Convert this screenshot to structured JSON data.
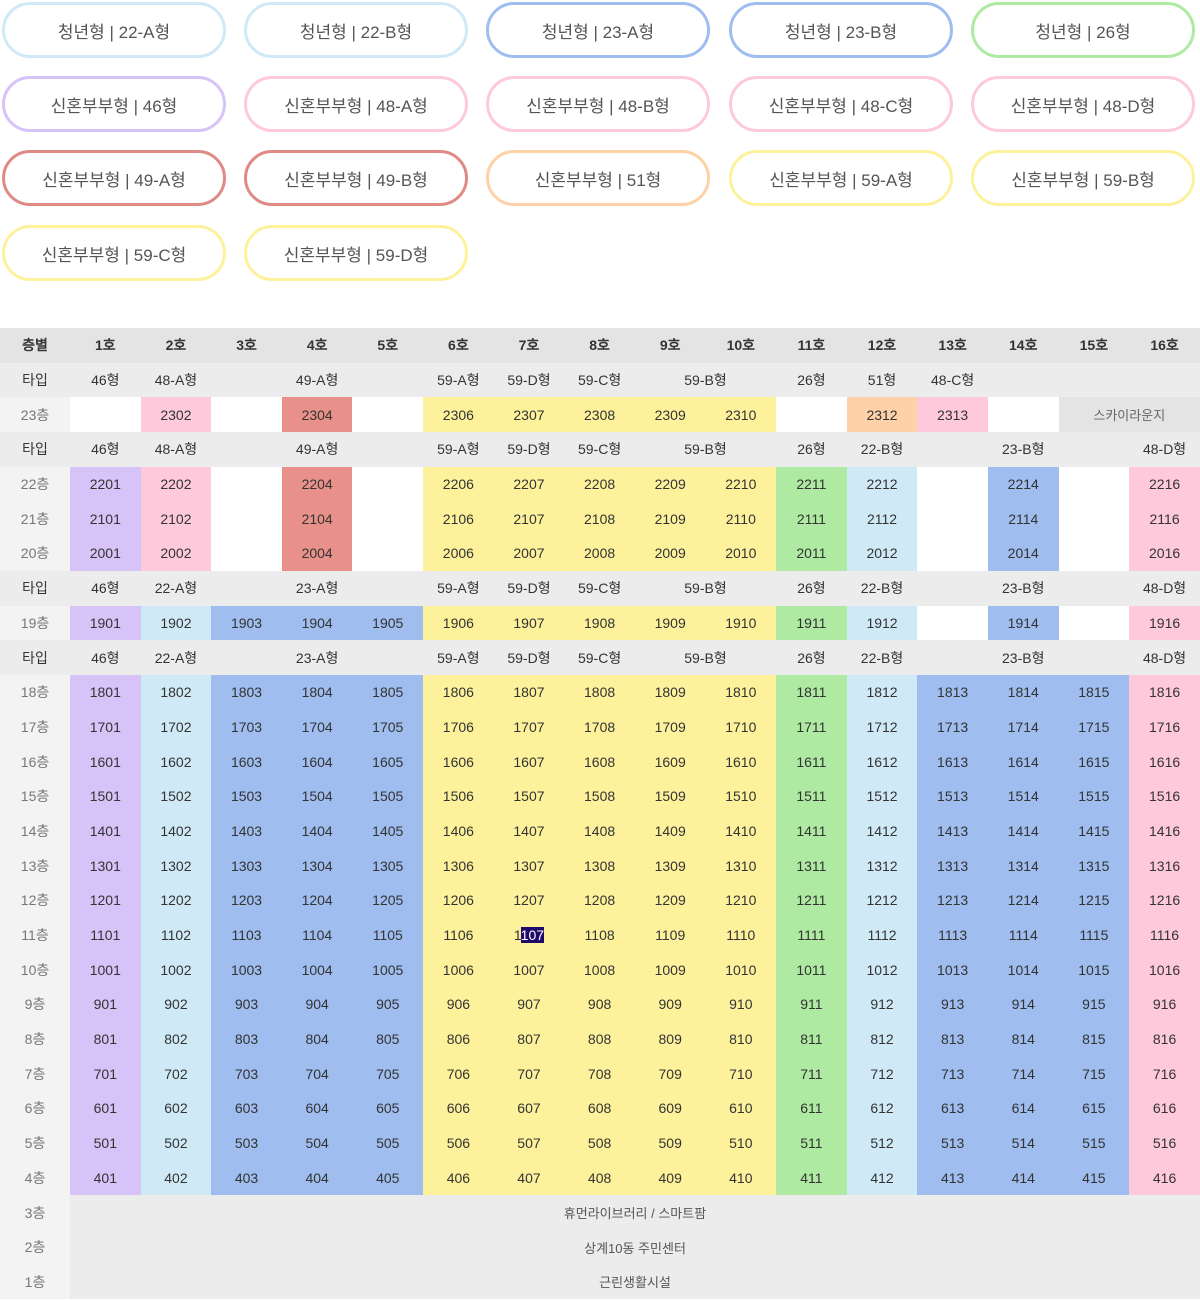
{
  "colors": {
    "c46": "#d7c3f7",
    "c48a": "#fecadb",
    "c49a": "#e8918a",
    "c59": "#fdf29b",
    "c26": "#aeeaa2",
    "c51": "#fed1a8",
    "c48c": "#fecadb",
    "c22": "#cfeaf6",
    "c23": "#9fbdef",
    "c48d": "#fecadb",
    "pill_22a": "#cfeaf6",
    "pill_22b": "#cfeaf6",
    "pill_23a": "#9fbdef",
    "pill_23b": "#9fbdef",
    "pill_26": "#aeeaa2",
    "pill_46": "#d7c3f7",
    "pill_48": "#fecadb",
    "pill_49a": "#e08a85",
    "pill_49b": "#e08a85",
    "pill_51": "#fed1a8",
    "pill_59": "#fdf29b"
  },
  "pills": [
    {
      "label": "청년형 | 22-A형",
      "color": "pill_22a"
    },
    {
      "label": "청년형 | 22-B형",
      "color": "pill_22b"
    },
    {
      "label": "청년형 | 23-A형",
      "color": "pill_23a"
    },
    {
      "label": "청년형 | 23-B형",
      "color": "pill_23b"
    },
    {
      "label": "청년형 | 26형",
      "color": "pill_26"
    },
    {
      "label": "신혼부부형 | 46형",
      "color": "pill_46"
    },
    {
      "label": "신혼부부형 | 48-A형",
      "color": "pill_48"
    },
    {
      "label": "신혼부부형 | 48-B형",
      "color": "pill_48"
    },
    {
      "label": "신혼부부형 | 48-C형",
      "color": "pill_48"
    },
    {
      "label": "신혼부부형 | 48-D형",
      "color": "pill_48"
    },
    {
      "label": "신혼부부형 | 49-A형",
      "color": "pill_49a"
    },
    {
      "label": "신혼부부형 | 49-B형",
      "color": "pill_49b"
    },
    {
      "label": "신혼부부형 | 51형",
      "color": "pill_51"
    },
    {
      "label": "신혼부부형 | 59-A형",
      "color": "pill_59"
    },
    {
      "label": "신혼부부형 | 59-B형",
      "color": "pill_59"
    },
    {
      "label": "신혼부부형 | 59-C형",
      "color": "pill_59"
    },
    {
      "label": "신혼부부형 | 59-D형",
      "color": "pill_59"
    }
  ],
  "table": {
    "rows": [
      {
        "kind": "hdr",
        "cells": [
          {
            "t": "층별"
          },
          {
            "t": "1호"
          },
          {
            "t": "2호"
          },
          {
            "t": "3호"
          },
          {
            "t": "4호"
          },
          {
            "t": "5호"
          },
          {
            "t": "6호"
          },
          {
            "t": "7호"
          },
          {
            "t": "8호"
          },
          {
            "t": "9호"
          },
          {
            "t": "10호"
          },
          {
            "t": "11호"
          },
          {
            "t": "12호"
          },
          {
            "t": "13호"
          },
          {
            "t": "14호"
          },
          {
            "t": "15호"
          },
          {
            "t": "16호"
          }
        ]
      },
      {
        "kind": "type",
        "cells": [
          {
            "t": "타입"
          },
          {
            "t": "46형"
          },
          {
            "t": "48-A형"
          },
          {
            "t": "49-A형",
            "span": 3
          },
          {
            "t": "59-A형"
          },
          {
            "t": "59-D형"
          },
          {
            "t": "59-C형"
          },
          {
            "t": "59-B형",
            "span": 2
          },
          {
            "t": "26형"
          },
          {
            "t": "51형"
          },
          {
            "t": "48-C형"
          },
          {
            "t": "",
            "span": 3
          }
        ]
      },
      {
        "kind": "floor",
        "cells": [
          {
            "t": "23층"
          },
          {
            "t": ""
          },
          {
            "t": "2302",
            "c": "c48a"
          },
          {
            "t": ""
          },
          {
            "t": "2304",
            "c": "c49a"
          },
          {
            "t": ""
          },
          {
            "t": "2306",
            "c": "c59"
          },
          {
            "t": "2307",
            "c": "c59"
          },
          {
            "t": "2308",
            "c": "c59"
          },
          {
            "t": "2309",
            "c": "c59"
          },
          {
            "t": "2310",
            "c": "c59"
          },
          {
            "t": ""
          },
          {
            "t": "2312",
            "c": "c51"
          },
          {
            "t": "2313",
            "c": "c48c"
          },
          {
            "t": ""
          },
          {
            "t": "스카이라운지",
            "span": 2,
            "lounge": true
          }
        ]
      },
      {
        "kind": "type",
        "cells": [
          {
            "t": "타입"
          },
          {
            "t": "46형"
          },
          {
            "t": "48-A형"
          },
          {
            "t": "49-A형",
            "span": 3
          },
          {
            "t": "59-A형"
          },
          {
            "t": "59-D형"
          },
          {
            "t": "59-C형"
          },
          {
            "t": "59-B형",
            "span": 2
          },
          {
            "t": "26형"
          },
          {
            "t": "22-B형"
          },
          {
            "t": "23-B형",
            "span": 3
          },
          {
            "t": "48-D형"
          }
        ]
      },
      {
        "kind": "floor",
        "cells": [
          {
            "t": "22층"
          },
          {
            "t": "2201",
            "c": "c46"
          },
          {
            "t": "2202",
            "c": "c48a"
          },
          {
            "t": ""
          },
          {
            "t": "2204",
            "c": "c49a"
          },
          {
            "t": ""
          },
          {
            "t": "2206",
            "c": "c59"
          },
          {
            "t": "2207",
            "c": "c59"
          },
          {
            "t": "2208",
            "c": "c59"
          },
          {
            "t": "2209",
            "c": "c59"
          },
          {
            "t": "2210",
            "c": "c59"
          },
          {
            "t": "2211",
            "c": "c26"
          },
          {
            "t": "2212",
            "c": "c22"
          },
          {
            "t": ""
          },
          {
            "t": "2214",
            "c": "c23"
          },
          {
            "t": ""
          },
          {
            "t": "2216",
            "c": "c48d"
          }
        ]
      },
      {
        "kind": "floor",
        "cells": [
          {
            "t": "21층"
          },
          {
            "t": "2101",
            "c": "c46"
          },
          {
            "t": "2102",
            "c": "c48a"
          },
          {
            "t": ""
          },
          {
            "t": "2104",
            "c": "c49a"
          },
          {
            "t": ""
          },
          {
            "t": "2106",
            "c": "c59"
          },
          {
            "t": "2107",
            "c": "c59"
          },
          {
            "t": "2108",
            "c": "c59"
          },
          {
            "t": "2109",
            "c": "c59"
          },
          {
            "t": "2110",
            "c": "c59"
          },
          {
            "t": "2111",
            "c": "c26"
          },
          {
            "t": "2112",
            "c": "c22"
          },
          {
            "t": ""
          },
          {
            "t": "2114",
            "c": "c23"
          },
          {
            "t": ""
          },
          {
            "t": "2116",
            "c": "c48d"
          }
        ]
      },
      {
        "kind": "floor",
        "cells": [
          {
            "t": "20층"
          },
          {
            "t": "2001",
            "c": "c46"
          },
          {
            "t": "2002",
            "c": "c48a"
          },
          {
            "t": ""
          },
          {
            "t": "2004",
            "c": "c49a"
          },
          {
            "t": ""
          },
          {
            "t": "2006",
            "c": "c59"
          },
          {
            "t": "2007",
            "c": "c59"
          },
          {
            "t": "2008",
            "c": "c59"
          },
          {
            "t": "2009",
            "c": "c59"
          },
          {
            "t": "2010",
            "c": "c59"
          },
          {
            "t": "2011",
            "c": "c26"
          },
          {
            "t": "2012",
            "c": "c22"
          },
          {
            "t": ""
          },
          {
            "t": "2014",
            "c": "c23"
          },
          {
            "t": ""
          },
          {
            "t": "2016",
            "c": "c48d"
          }
        ]
      },
      {
        "kind": "type",
        "cells": [
          {
            "t": "타입"
          },
          {
            "t": "46형"
          },
          {
            "t": "22-A형"
          },
          {
            "t": "23-A형",
            "span": 3
          },
          {
            "t": "59-A형"
          },
          {
            "t": "59-D형"
          },
          {
            "t": "59-C형"
          },
          {
            "t": "59-B형",
            "span": 2
          },
          {
            "t": "26형"
          },
          {
            "t": "22-B형"
          },
          {
            "t": "23-B형",
            "span": 3
          },
          {
            "t": "48-D형"
          }
        ]
      },
      {
        "kind": "floor",
        "cells": [
          {
            "t": "19층"
          },
          {
            "t": "1901",
            "c": "c46"
          },
          {
            "t": "1902",
            "c": "c22"
          },
          {
            "t": "1903",
            "c": "c23"
          },
          {
            "t": "1904",
            "c": "c23"
          },
          {
            "t": "1905",
            "c": "c23"
          },
          {
            "t": "1906",
            "c": "c59"
          },
          {
            "t": "1907",
            "c": "c59"
          },
          {
            "t": "1908",
            "c": "c59"
          },
          {
            "t": "1909",
            "c": "c59"
          },
          {
            "t": "1910",
            "c": "c59"
          },
          {
            "t": "1911",
            "c": "c26"
          },
          {
            "t": "1912",
            "c": "c22"
          },
          {
            "t": ""
          },
          {
            "t": "1914",
            "c": "c23"
          },
          {
            "t": ""
          },
          {
            "t": "1916",
            "c": "c48d"
          }
        ]
      },
      {
        "kind": "type",
        "cells": [
          {
            "t": "타입"
          },
          {
            "t": "46형"
          },
          {
            "t": "22-A형"
          },
          {
            "t": "23-A형",
            "span": 3
          },
          {
            "t": "59-A형"
          },
          {
            "t": "59-D형"
          },
          {
            "t": "59-C형"
          },
          {
            "t": "59-B형",
            "span": 2
          },
          {
            "t": "26형"
          },
          {
            "t": "22-B형"
          },
          {
            "t": "23-B형",
            "span": 3
          },
          {
            "t": "48-D형"
          }
        ]
      }
    ],
    "standard_floors": [
      "18층",
      "17층",
      "16층",
      "15층",
      "14층",
      "13층",
      "12층",
      "11층",
      "10층",
      "9층",
      "8층",
      "7층",
      "6층",
      "5층",
      "4층"
    ],
    "standard_colors": [
      "c46",
      "c22",
      "c23",
      "c23",
      "c23",
      "c59",
      "c59",
      "c59",
      "c59",
      "c59",
      "c26",
      "c22",
      "c23",
      "c23",
      "c23",
      "c48d"
    ],
    "highlight_unit": "1107",
    "facility_rows": [
      {
        "floor": "3층",
        "label": "휴먼라이브러리 / 스마트팜"
      },
      {
        "floor": "2층",
        "label": "상계10동 주민센터"
      },
      {
        "floor": "1층",
        "label": "근린생활시설"
      }
    ]
  }
}
